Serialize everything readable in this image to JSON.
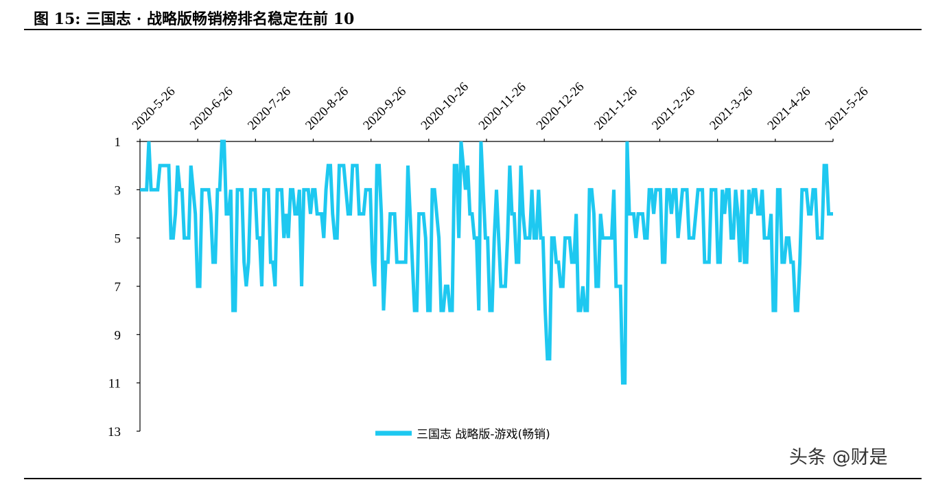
{
  "figure": {
    "title": "图 15: 三国志 · 战略版畅销榜排名稳定在前 10",
    "watermark": "头条 @财是"
  },
  "chart_data": {
    "type": "line",
    "title": "",
    "xlabel": "",
    "ylabel": "",
    "y_inverted": true,
    "ylim": [
      1,
      13
    ],
    "y_ticks": [
      1,
      3,
      5,
      7,
      9,
      11,
      13
    ],
    "x_tick_labels": [
      "2020-5-26",
      "2020-6-26",
      "2020-7-26",
      "2020-8-26",
      "2020-9-26",
      "2020-10-26",
      "2020-11-26",
      "2020-12-26",
      "2021-1-26",
      "2021-2-26",
      "2021-3-26",
      "2021-4-26",
      "2021-5-26"
    ],
    "x_axis_position": "top",
    "grid": false,
    "legend_position": "bottom-center",
    "line_color": "#1ec8f0",
    "series": [
      {
        "name": "三国志 战略版-游戏(畅销)",
        "start_date": "2020-5-26",
        "values": [
          3,
          3,
          3,
          3,
          1,
          3,
          3,
          3,
          3,
          2,
          2,
          2,
          2,
          2,
          5,
          5,
          4,
          2,
          3,
          3,
          5,
          5,
          5,
          2,
          3,
          4,
          7,
          7,
          3,
          3,
          3,
          3,
          4,
          6,
          6,
          3,
          3,
          1,
          1,
          4,
          4,
          3,
          8,
          8,
          3,
          3,
          3,
          6,
          7,
          6,
          3,
          3,
          3,
          5,
          5,
          7,
          3,
          3,
          3,
          6,
          6,
          7,
          3,
          3,
          3,
          5,
          4,
          5,
          3,
          3,
          4,
          4,
          3,
          7,
          3,
          3,
          3,
          4,
          3,
          3,
          4,
          4,
          4,
          5,
          3,
          2,
          2,
          4,
          5,
          5,
          2,
          2,
          2,
          3,
          4,
          4,
          2,
          2,
          2,
          4,
          4,
          4,
          3,
          3,
          3,
          6,
          7,
          2,
          2,
          4,
          8,
          6,
          6,
          4,
          4,
          4,
          6,
          6,
          6,
          6,
          6,
          2,
          4,
          6,
          8,
          8,
          4,
          4,
          4,
          5,
          8,
          8,
          3,
          3,
          4,
          5,
          8,
          8,
          7,
          7,
          8,
          8,
          2,
          2,
          5,
          1,
          2,
          3,
          2,
          4,
          4,
          5,
          5,
          8,
          1,
          3,
          5,
          5,
          8,
          8,
          5,
          3,
          5,
          7,
          7,
          7,
          5,
          2,
          4,
          4,
          6,
          6,
          2,
          4,
          5,
          5,
          5,
          3,
          5,
          5,
          3,
          5,
          5,
          8,
          10,
          10,
          5,
          5,
          6,
          6,
          7,
          7,
          5,
          5,
          5,
          6,
          6,
          4,
          8,
          8,
          7,
          8,
          8,
          3,
          3,
          4,
          7,
          7,
          4,
          5,
          5,
          5,
          5,
          5,
          3,
          7,
          7,
          7,
          11,
          11,
          1,
          4,
          4,
          4,
          5,
          4,
          4,
          4,
          5,
          5,
          3,
          3,
          4,
          3,
          3,
          3,
          6,
          6,
          3,
          3,
          4,
          3,
          3,
          5,
          4,
          3,
          3,
          3,
          5,
          5,
          5,
          4,
          3,
          3,
          3,
          6,
          6,
          6,
          3,
          3,
          3,
          6,
          6,
          3,
          4,
          3,
          3,
          5,
          5,
          3,
          4,
          6,
          3,
          6,
          6,
          3,
          4,
          3,
          3,
          4,
          4,
          3,
          5,
          5,
          5,
          4,
          8,
          8,
          3,
          3,
          6,
          6,
          5,
          5,
          6,
          6,
          8,
          8,
          6,
          3,
          3,
          3,
          4,
          4,
          3,
          3,
          5,
          5,
          5,
          2,
          2,
          4,
          4,
          4
        ]
      }
    ]
  }
}
